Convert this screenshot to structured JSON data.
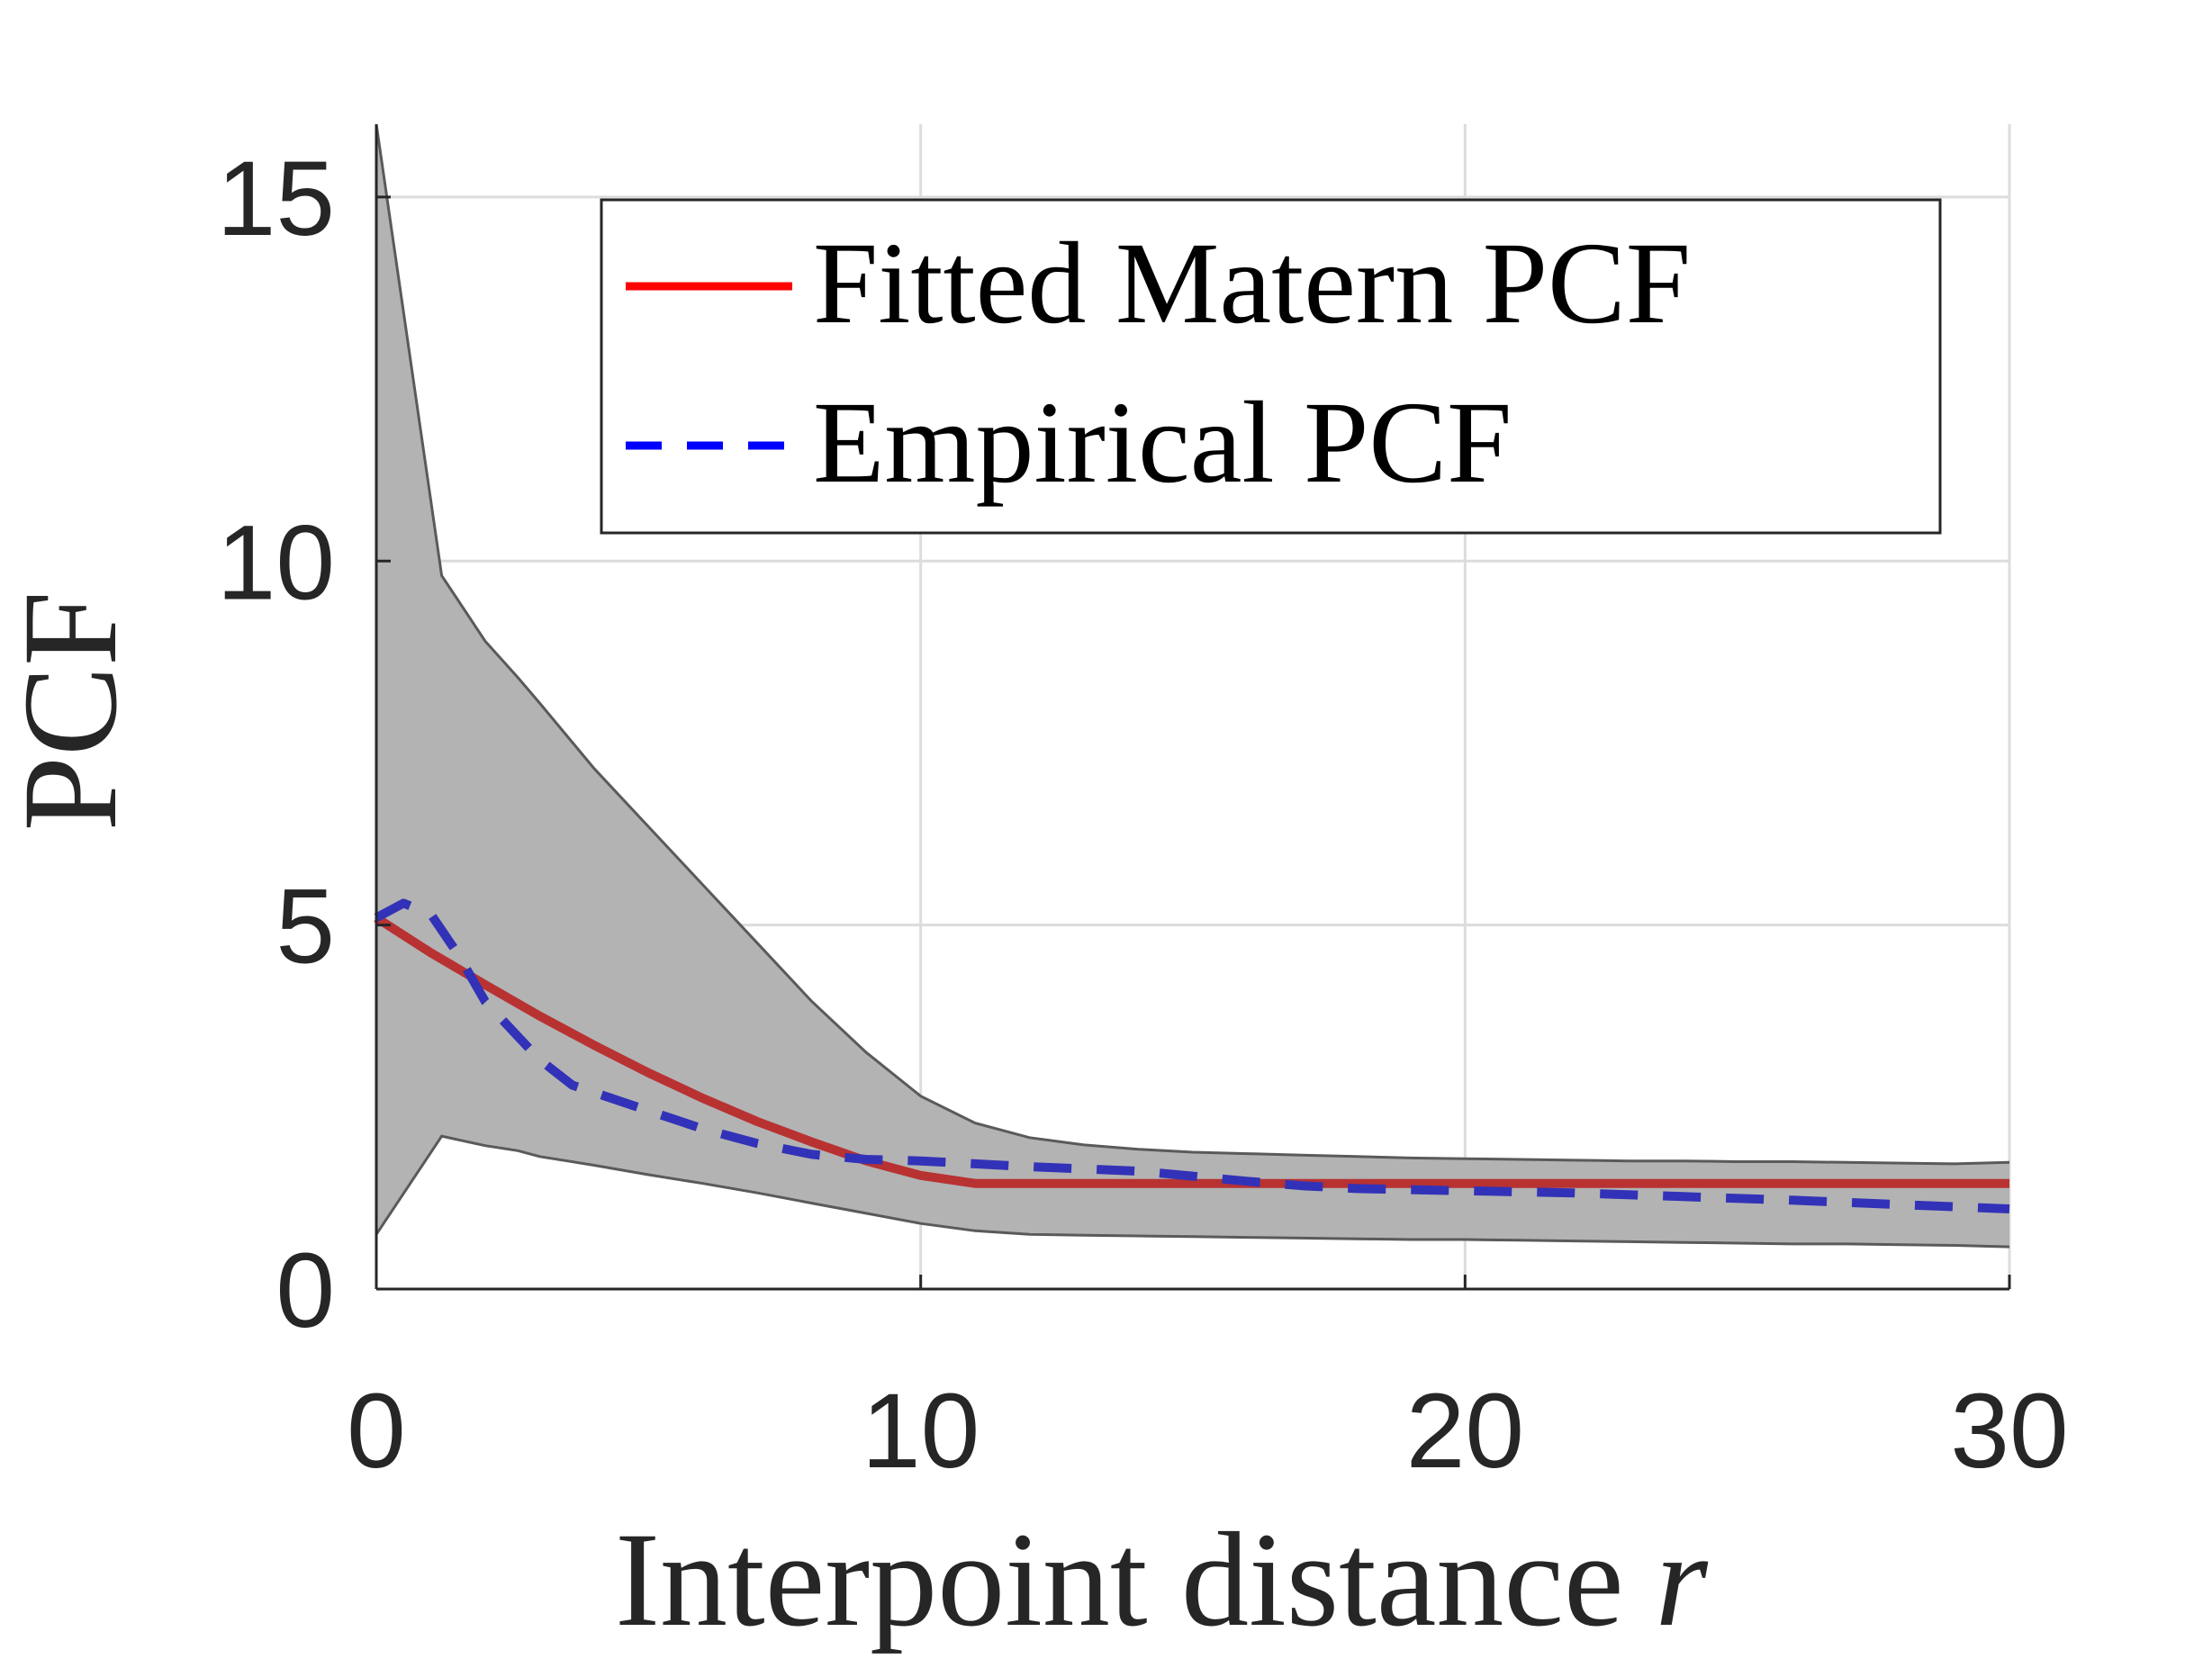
{
  "chart_data": {
    "type": "line",
    "xlabel": "Interpoint distance",
    "xlabel_var": "r",
    "ylabel": "PCF",
    "xlim": [
      0,
      30
    ],
    "ylim": [
      0,
      16
    ],
    "xticks": [
      0,
      10,
      20,
      30
    ],
    "yticks": [
      0,
      5,
      10,
      15
    ],
    "grid": true,
    "legend_position": "top-right",
    "series": [
      {
        "name": "Fitted Matern PCF",
        "style": "solid",
        "color": "#b83232",
        "legend_color": "#ff0000",
        "x": [
          0,
          1,
          2,
          3,
          4,
          5,
          6,
          7,
          8,
          9,
          10,
          11,
          11.3,
          15,
          20,
          25,
          30
        ],
        "y": [
          5.1,
          4.62,
          4.18,
          3.75,
          3.35,
          2.97,
          2.62,
          2.3,
          2.02,
          1.76,
          1.56,
          1.45,
          1.45,
          1.45,
          1.45,
          1.45,
          1.45
        ]
      },
      {
        "name": "Empirical PCF",
        "style": "dashed",
        "color": "#3232b8",
        "legend_color": "#0000ff",
        "x": [
          0,
          0.5,
          1,
          1.5,
          2,
          3,
          3.6,
          4,
          5,
          6,
          7,
          8,
          9,
          10,
          12,
          14,
          15,
          16,
          17,
          18,
          20,
          22,
          24,
          26,
          28,
          30
        ],
        "y": [
          5.1,
          5.3,
          5.15,
          4.6,
          3.95,
          3.15,
          2.8,
          2.7,
          2.45,
          2.2,
          2.0,
          1.85,
          1.78,
          1.76,
          1.68,
          1.62,
          1.55,
          1.48,
          1.42,
          1.38,
          1.35,
          1.32,
          1.27,
          1.22,
          1.16,
          1.1
        ]
      }
    ],
    "band": {
      "color": "#b3b3b3",
      "edge_color": "#5a5a5a",
      "x": [
        0,
        1.2,
        2,
        2.6,
        3,
        4,
        5,
        6,
        7,
        8,
        9,
        10,
        11,
        12,
        13,
        14,
        15,
        16,
        17,
        18,
        19,
        20,
        21,
        22,
        23,
        24,
        25,
        26,
        27,
        28,
        29,
        30
      ],
      "upper": [
        16,
        9.8,
        8.9,
        8.4,
        8.05,
        7.15,
        6.35,
        5.55,
        4.75,
        3.95,
        3.25,
        2.65,
        2.28,
        2.08,
        1.98,
        1.92,
        1.88,
        1.86,
        1.84,
        1.82,
        1.8,
        1.79,
        1.78,
        1.77,
        1.76,
        1.76,
        1.75,
        1.75,
        1.74,
        1.73,
        1.72,
        1.74
      ],
      "lower": [
        0.75,
        2.1,
        1.97,
        1.9,
        1.82,
        1.7,
        1.57,
        1.45,
        1.32,
        1.18,
        1.04,
        0.9,
        0.8,
        0.75,
        0.74,
        0.73,
        0.72,
        0.71,
        0.7,
        0.69,
        0.68,
        0.68,
        0.67,
        0.66,
        0.65,
        0.64,
        0.63,
        0.62,
        0.62,
        0.61,
        0.6,
        0.58
      ]
    }
  }
}
